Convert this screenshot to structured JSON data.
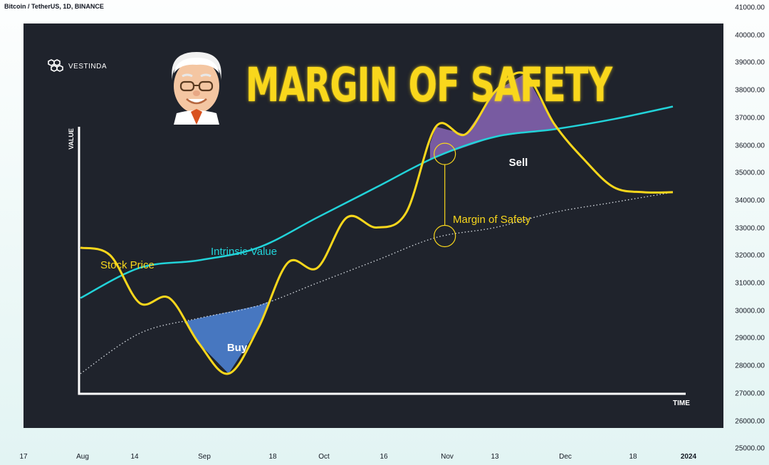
{
  "header": {
    "symbol_title": "Bitcoin / TetherUS, 1D, BINANCE"
  },
  "brand": {
    "name": "VESTINDA",
    "logo_icon": "hexagon-cluster-icon"
  },
  "headline": "MARGIN OF SAFETY",
  "avatar_icon": "investor-portrait-icon",
  "colors": {
    "background": "#1f232c",
    "stock_price": "#f9d71c",
    "intrinsic_value": "#22d3d9",
    "fair_value_dotted": "#d8dde3",
    "buy_zone": "#4a7cc8",
    "sell_zone": "#7d5fa8",
    "axis": "#ffffff"
  },
  "price_axis": [
    "41000.00",
    "40000.00",
    "39000.00",
    "38000.00",
    "37000.00",
    "36000.00",
    "35000.00",
    "34000.00",
    "33000.00",
    "32000.00",
    "31000.00",
    "30000.00",
    "29000.00",
    "28000.00",
    "27000.00",
    "26000.00",
    "25000.00"
  ],
  "time_axis": [
    {
      "label": "17",
      "bold": false
    },
    {
      "label": "Aug",
      "bold": false
    },
    {
      "label": "14",
      "bold": false
    },
    {
      "label": "Sep",
      "bold": false
    },
    {
      "label": "18",
      "bold": false
    },
    {
      "label": "Oct",
      "bold": false
    },
    {
      "label": "16",
      "bold": false
    },
    {
      "label": "Nov",
      "bold": false
    },
    {
      "label": "13",
      "bold": false
    },
    {
      "label": "Dec",
      "bold": false
    },
    {
      "label": "18",
      "bold": false
    },
    {
      "label": "2024",
      "bold": true
    }
  ],
  "chart_data": {
    "type": "line",
    "xlabel": "TIME",
    "ylabel": "VALUE",
    "series": [
      {
        "name": "Stock Price",
        "x": [
          0,
          5,
          10,
          15,
          20,
          25,
          30,
          35,
          40,
          45,
          50,
          55,
          60,
          65,
          70,
          75,
          80,
          85,
          90,
          95,
          100
        ],
        "values": [
          58,
          55,
          36,
          38,
          20,
          8,
          26,
          52,
          50,
          70,
          66,
          72,
          106,
          103,
          120,
          127,
          107,
          93,
          82,
          80,
          80
        ]
      },
      {
        "name": "Intrinsic Value",
        "x": [
          0,
          10,
          20,
          30,
          40,
          50,
          60,
          70,
          80,
          90,
          100
        ],
        "values": [
          38,
          50,
          53,
          58,
          70,
          82,
          94,
          102,
          105,
          109,
          114
        ]
      },
      {
        "name": "",
        "x": [
          0,
          10,
          20,
          30,
          40,
          50,
          60,
          70,
          80,
          90,
          100
        ],
        "values": [
          8,
          24,
          30,
          35,
          44,
          53,
          62,
          66,
          72,
          76,
          80
        ]
      }
    ],
    "annotations": [
      {
        "text": "Stock Price"
      },
      {
        "text": "Intrinsic Value"
      },
      {
        "text": "Buy"
      },
      {
        "text": "Sell"
      },
      {
        "text": "Margin of Safety"
      }
    ]
  }
}
